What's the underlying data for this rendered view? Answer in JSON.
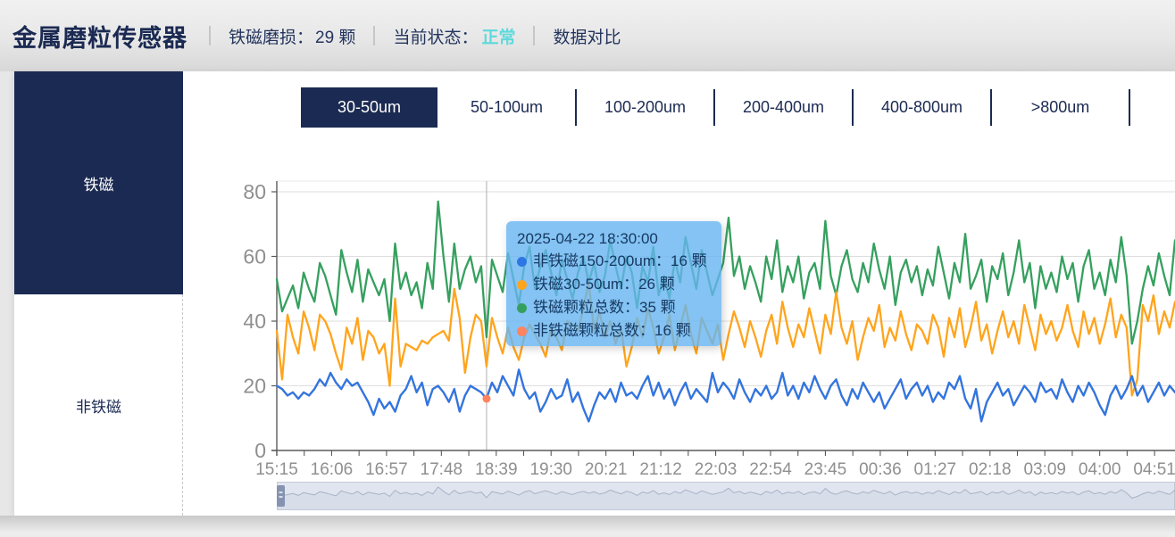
{
  "header": {
    "title": "金属磨粒传感器",
    "wear_label": "铁磁磨损：",
    "wear_value": "29 颗",
    "status_label": "当前状态：",
    "status_value": "正常",
    "compare_label": "数据对比"
  },
  "sidebar": {
    "items": [
      {
        "label": "铁磁",
        "active": true
      },
      {
        "label": "非铁磁",
        "active": false
      }
    ]
  },
  "tabs": {
    "active_index": 0,
    "items": [
      {
        "label": "30-50um"
      },
      {
        "label": "50-100um"
      },
      {
        "label": "100-200um"
      },
      {
        "label": "200-400um"
      },
      {
        "label": "400-800um"
      },
      {
        "label": ">800um"
      }
    ]
  },
  "tooltip": {
    "date": "2025-04-22 18:30:00",
    "point_index": 39,
    "rows": [
      {
        "color": "#2d77e5",
        "text": "非铁磁150-200um：16 颗"
      },
      {
        "color": "#ffa41c",
        "text": "铁磁30-50um：26 颗"
      },
      {
        "color": "#35a05e",
        "text": "铁磁颗粒总数：35 颗"
      },
      {
        "color": "#ff835e",
        "text": "非铁磁颗粒总数：16 颗"
      }
    ]
  },
  "colors": {
    "navy": "#1b2a52",
    "status_teal": "#5ed9dc",
    "axis_label": "#8f8f8f",
    "axis_line": "#5a5a5a",
    "grid_line": "#dedede",
    "crosshair": "#b0b0b0",
    "tooltip_bg": "rgba(101,180,240,0.80)"
  },
  "chart_data": {
    "type": "line",
    "x_start": "15:15",
    "x_interval_minutes": 5,
    "x_labels": [
      "15:15",
      "16:06",
      "16:57",
      "17:48",
      "18:39",
      "19:30",
      "20:21",
      "21:12",
      "22:03",
      "22:54",
      "23:45",
      "00:36",
      "01:27",
      "02:18",
      "03:09",
      "04:00",
      "04:51"
    ],
    "ylim": [
      0,
      80
    ],
    "y_ticks": [
      0,
      20,
      40,
      60,
      80
    ],
    "grid": true,
    "legend_position": "none",
    "tooltip_point": {
      "index": 39,
      "time": "2025-04-22 18:30:00",
      "values": [
        16,
        26,
        35,
        16
      ]
    },
    "series": [
      {
        "name": "非铁磁150-200um",
        "color": "#2d77e5",
        "values": [
          20,
          19,
          17,
          18,
          16,
          18,
          17,
          19,
          22,
          20,
          24,
          21,
          19,
          22,
          20,
          21,
          18,
          15,
          11,
          16,
          13,
          15,
          12,
          17,
          19,
          23,
          18,
          21,
          14,
          19,
          20,
          18,
          15,
          19,
          12,
          17,
          20,
          19,
          18,
          16,
          21,
          18,
          23,
          20,
          17,
          25,
          19,
          16,
          18,
          12,
          15,
          19,
          16,
          17,
          22,
          15,
          18,
          13,
          9,
          14,
          18,
          16,
          19,
          15,
          21,
          17,
          18,
          16,
          20,
          23,
          17,
          21,
          16,
          19,
          14,
          18,
          21,
          16,
          19,
          17,
          15,
          24,
          18,
          21,
          19,
          16,
          22,
          18,
          15,
          19,
          17,
          20,
          16,
          18,
          24,
          17,
          20,
          16,
          21,
          18,
          23,
          19,
          16,
          20,
          22,
          17,
          14,
          19,
          16,
          21,
          18,
          15,
          18,
          13,
          16,
          19,
          22,
          16,
          19,
          21,
          17,
          20,
          15,
          18,
          16,
          21,
          19,
          23,
          16,
          13,
          19,
          9,
          15,
          18,
          21,
          17,
          19,
          14,
          17,
          20,
          18,
          15,
          21,
          18,
          19,
          16,
          22,
          18,
          15,
          20,
          17,
          21,
          18,
          14,
          11,
          17,
          20,
          16,
          19,
          23,
          17,
          20,
          15,
          18,
          21,
          17,
          20,
          18
        ]
      },
      {
        "name": "铁磁30-50um",
        "color": "#ffa41c",
        "values": [
          37,
          22,
          42,
          35,
          30,
          43,
          38,
          31,
          42,
          40,
          36,
          30,
          25,
          38,
          33,
          41,
          28,
          37,
          35,
          30,
          33,
          20,
          47,
          26,
          33,
          32,
          31,
          34,
          33,
          35,
          36,
          37,
          34,
          50,
          41,
          24,
          35,
          42,
          40,
          26,
          41,
          35,
          30,
          38,
          32,
          28,
          35,
          39,
          36,
          33,
          29,
          38,
          35,
          31,
          40,
          39,
          37,
          44,
          52,
          37,
          43,
          35,
          40,
          33,
          38,
          26,
          32,
          41,
          35,
          44,
          38,
          30,
          35,
          42,
          31,
          38,
          45,
          36,
          30,
          41,
          37,
          33,
          39,
          28,
          36,
          43,
          38,
          32,
          40,
          35,
          29,
          37,
          42,
          33,
          46,
          38,
          32,
          39,
          35,
          44,
          37,
          30,
          42,
          36,
          49,
          38,
          33,
          40,
          28,
          35,
          41,
          37,
          45,
          32,
          38,
          34,
          43,
          36,
          31,
          39,
          37,
          33,
          42,
          38,
          29,
          41,
          35,
          44,
          32,
          38,
          46,
          34,
          39,
          30,
          37,
          43,
          35,
          40,
          33,
          45,
          38,
          31,
          42,
          36,
          40,
          34,
          38,
          45,
          37,
          32,
          43,
          36,
          41,
          33,
          39,
          47,
          35,
          42,
          38,
          17,
          22,
          45,
          40,
          48,
          36,
          43,
          38,
          46
        ]
      },
      {
        "name": "铁磁颗粒总数",
        "color": "#35a05e",
        "values": [
          53,
          43,
          47,
          51,
          44,
          55,
          50,
          46,
          58,
          54,
          48,
          42,
          62,
          55,
          49,
          59,
          46,
          56,
          52,
          48,
          53,
          40,
          64,
          50,
          55,
          48,
          52,
          44,
          58,
          50,
          77,
          60,
          46,
          64,
          50,
          56,
          60,
          52,
          57,
          35,
          59,
          54,
          49,
          61,
          53,
          45,
          57,
          63,
          50,
          57,
          62,
          55,
          48,
          59,
          53,
          47,
          55,
          60,
          52,
          58,
          49,
          54,
          65,
          57,
          50,
          60,
          55,
          44,
          57,
          52,
          63,
          48,
          54,
          47,
          59,
          52,
          66,
          58,
          50,
          62,
          55,
          48,
          53,
          58,
          72,
          54,
          60,
          50,
          57,
          52,
          46,
          60,
          53,
          65,
          49,
          57,
          52,
          60,
          47,
          55,
          58,
          50,
          71,
          54,
          48,
          57,
          62,
          53,
          49,
          58,
          52,
          64,
          56,
          50,
          60,
          45,
          55,
          59,
          52,
          57,
          48,
          56,
          51,
          63,
          55,
          47,
          58,
          52,
          67,
          50,
          54,
          59,
          46,
          57,
          53,
          61,
          48,
          55,
          65,
          52,
          58,
          44,
          57,
          50,
          55,
          49,
          60,
          53,
          58,
          46,
          57,
          62,
          50,
          55,
          48,
          59,
          52,
          66,
          54,
          33,
          40,
          50,
          57,
          51,
          61,
          54,
          48,
          65
        ]
      },
      {
        "name": "非铁磁颗粒总数",
        "color": "#ff835e",
        "values": [
          20,
          19,
          17,
          18,
          16,
          18,
          17,
          19,
          22,
          20,
          24,
          21,
          19,
          22,
          20,
          21,
          18,
          15,
          11,
          16,
          13,
          15,
          12,
          17,
          19,
          23,
          18,
          21,
          14,
          19,
          20,
          18,
          15,
          19,
          12,
          17,
          20,
          19,
          18,
          16,
          21,
          18,
          23,
          20,
          17,
          25,
          19,
          16,
          18,
          12,
          15,
          19,
          16,
          17,
          22,
          15,
          18,
          13,
          9,
          14,
          18,
          16,
          19,
          15,
          21,
          17,
          18,
          16,
          20,
          23,
          17,
          21,
          16,
          19,
          14,
          18,
          21,
          16,
          19,
          17,
          15,
          24,
          18,
          21,
          19,
          16,
          22,
          18,
          15,
          19,
          17,
          20,
          16,
          18,
          24,
          17,
          20,
          16,
          21,
          18,
          23,
          19,
          16,
          20,
          22,
          17,
          14,
          19,
          16,
          21,
          18,
          15,
          18,
          13,
          16,
          19,
          22,
          16,
          19,
          21,
          17,
          20,
          15,
          18,
          16,
          21,
          19,
          23,
          16,
          13,
          19,
          9,
          15,
          18,
          21,
          17,
          19,
          14,
          17,
          20,
          18,
          15,
          21,
          18,
          19,
          16,
          22,
          18,
          15,
          20,
          17,
          21,
          18,
          14,
          11,
          17,
          20,
          16,
          19,
          23,
          17,
          20,
          15,
          18,
          21,
          17,
          20,
          18
        ]
      }
    ]
  }
}
